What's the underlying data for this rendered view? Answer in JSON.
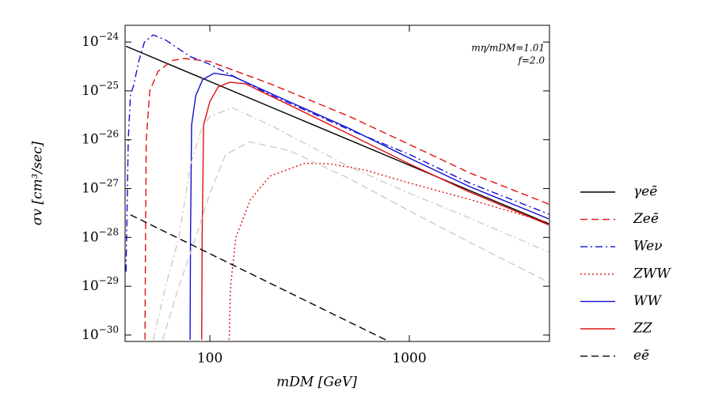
{
  "chart_data": {
    "type": "line",
    "log_x": true,
    "log_y": true,
    "xlabel": "mDM [GeV]",
    "ylabel": "σv [cm³/sec]",
    "annotations": [
      "mη/mDM=1.01",
      "f=2.0"
    ],
    "xlim": [
      37.6,
      5040
    ],
    "xticks": [
      100,
      1000
    ],
    "ylim": [
      7.4e-31,
      2.2e-24
    ],
    "yticks": [
      {
        "value": 1e-24,
        "label": "10−24"
      },
      {
        "value": 1e-25,
        "label": "10−25"
      },
      {
        "value": 1e-26,
        "label": "10−26"
      },
      {
        "value": 1e-27,
        "label": "10−27"
      },
      {
        "value": 1e-28,
        "label": "10−28"
      },
      {
        "value": 1e-29,
        "label": "10−29"
      },
      {
        "value": 1e-30,
        "label": "10−30"
      }
    ],
    "legend": "right",
    "series": [
      {
        "name": "γeē",
        "color": "#000000",
        "dash": "solid",
        "x": [
          38,
          5000
        ],
        "values": [
          8.2e-25,
          1.9e-28
        ]
      },
      {
        "name": "Zeē",
        "color": "#e01010",
        "dash": "dash",
        "x": [
          47.3,
          47.6,
          48,
          50,
          55,
          65,
          75,
          100,
          200,
          500,
          1000,
          2000,
          5000
        ],
        "values": [
          8e-31,
          1e-28,
          1e-26,
          1e-25,
          2.5e-25,
          4.2e-25,
          4.6e-25,
          4e-25,
          1.4e-25,
          3e-26,
          8e-27,
          2.1e-27,
          4.8e-28
        ]
      },
      {
        "name": "Weν",
        "color": "#1010d0",
        "dash": "dashdot",
        "x": [
          38,
          39,
          40,
          41.5,
          44,
          47,
          52,
          60,
          80,
          100,
          200,
          500,
          1000,
          2000,
          5000
        ],
        "values": [
          2e-29,
          1e-26,
          8e-26,
          1.3e-25,
          4e-25,
          1e-24,
          1.4e-24,
          1.1e-24,
          5e-25,
          3.5e-25,
          8.4e-26,
          1.6e-26,
          5e-27,
          1.3e-27,
          3e-28
        ]
      },
      {
        "name": "ZWW",
        "color": "#e01010",
        "dash": "dot",
        "x": [
          125,
          127,
          135,
          160,
          200,
          300,
          400,
          600,
          1000,
          2000,
          5000
        ],
        "values": [
          8e-31,
          1e-29,
          1e-28,
          6e-28,
          1.8e-27,
          3.3e-27,
          3.2e-27,
          2.4e-27,
          1.3e-27,
          6e-28,
          2e-28
        ]
      },
      {
        "name": "WW",
        "color": "#1010d0",
        "dash": "solid",
        "x": [
          79.6,
          80,
          81,
          85,
          92,
          105,
          130,
          200,
          500,
          1000,
          2000,
          5000
        ],
        "values": [
          8e-31,
          1e-28,
          2e-26,
          8e-26,
          1.7e-25,
          2.3e-25,
          2e-25,
          9e-26,
          1.7e-26,
          4.2e-27,
          1.1e-27,
          2.4e-28
        ]
      },
      {
        "name": "ZZ",
        "color": "#e01010",
        "dash": "solid",
        "x": [
          91,
          91.5,
          93,
          100,
          110,
          126,
          150,
          200,
          500,
          1000,
          2000,
          5000
        ],
        "values": [
          8e-31,
          1e-28,
          2e-26,
          6e-26,
          1.2e-25,
          1.5e-25,
          1.4e-25,
          8e-26,
          1.3e-26,
          3.2e-27,
          8.5e-28,
          1.8e-28
        ]
      },
      {
        "name": "eē",
        "color": "#000000",
        "dash": "dash",
        "x": [
          40,
          780
        ],
        "values": [
          2.9e-28,
          7.6e-31
        ]
      },
      {
        "color": "#cccccc",
        "dash": "dashdot",
        "x": [
          52,
          60,
          70,
          80,
          90,
          100,
          130,
          200,
          500,
          1000,
          2000,
          5000
        ],
        "values": [
          8e-31,
          1e-29,
          1e-28,
          3e-27,
          1.5e-26,
          3e-26,
          4.5e-26,
          2e-26,
          2.8e-27,
          8e-28,
          2.5e-28,
          5e-29
        ]
      },
      {
        "color": "#cccccc",
        "dash": "dash",
        "x": [
          58,
          70,
          85,
          100,
          120,
          158,
          250,
          500,
          1000,
          2000,
          5000
        ],
        "values": [
          8e-31,
          1e-29,
          1e-28,
          8e-28,
          5e-27,
          9e-27,
          6e-27,
          1.6e-27,
          3.5e-28,
          8e-29,
          1.2e-29
        ]
      }
    ]
  }
}
